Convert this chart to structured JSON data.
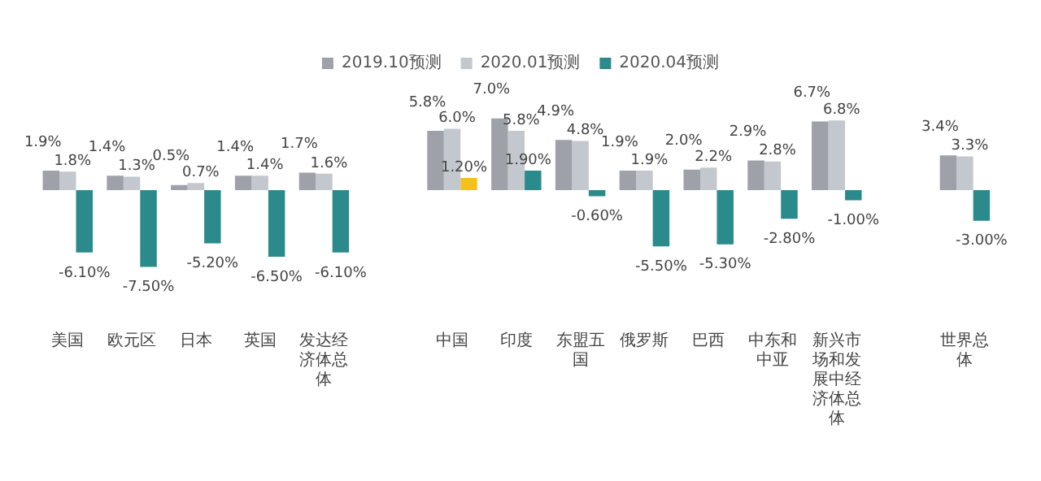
{
  "chart_data": {
    "type": "bar",
    "categories": [
      "美国",
      "欧元区",
      "日本",
      "英国",
      "发达经济体总体",
      null,
      "中国",
      "印度",
      "东盟五国",
      "俄罗斯",
      "巴西",
      "中东和中亚",
      "新兴市场和发展中经济体总体",
      null,
      "世界总体"
    ],
    "series": [
      {
        "name": "2019.10预测",
        "color": "#9ea2a8",
        "values": [
          1.9,
          1.4,
          0.5,
          1.4,
          1.7,
          null,
          5.8,
          7.0,
          4.9,
          1.9,
          2.0,
          2.9,
          6.7,
          null,
          3.4
        ],
        "value_labels": [
          "1.9%",
          "1.4%",
          "0.5%",
          "1.4%",
          "1.7%",
          null,
          "5.8%",
          "7.0%",
          "4.9%",
          "1.9%",
          "2.0%",
          "2.9%",
          "6.7%",
          null,
          "3.4%"
        ]
      },
      {
        "name": "2020.01预测",
        "color": "#c3c7ce",
        "values": [
          1.8,
          1.3,
          0.7,
          1.4,
          1.6,
          null,
          6.0,
          5.8,
          4.8,
          1.9,
          2.2,
          2.8,
          6.8,
          null,
          3.3
        ],
        "value_labels": [
          "1.8%",
          "1.3%",
          "0.7%",
          "1.4%",
          "1.6%",
          null,
          "6.0%",
          "5.8%",
          "4.8%",
          "1.9%",
          "2.2%",
          "2.8%",
          "6.8%",
          null,
          "3.3%"
        ]
      },
      {
        "name": "2020.04预测",
        "color": "#2b8a8c",
        "colors": [
          "#2b8a8c",
          "#2b8a8c",
          "#2b8a8c",
          "#2b8a8c",
          "#2b8a8c",
          "#2b8a8c",
          "#f2c21b",
          "#2b8a8c",
          "#2b8a8c",
          "#2b8a8c",
          "#2b8a8c",
          "#2b8a8c",
          "#2b8a8c",
          "#2b8a8c",
          "#2b8a8c"
        ],
        "values": [
          -6.1,
          -7.5,
          -5.2,
          -6.5,
          -6.1,
          null,
          1.2,
          1.9,
          -0.6,
          -5.5,
          -5.3,
          -2.8,
          -1.0,
          null,
          -3.0
        ],
        "value_labels": [
          "-6.10%",
          "-7.50%",
          "-5.20%",
          "-6.50%",
          "-6.10%",
          null,
          "1.20%",
          "1.90%",
          "-0.60%",
          "-5.50%",
          "-5.30%",
          "-2.80%",
          "-1.00%",
          null,
          "-3.00%"
        ]
      }
    ],
    "legend": "top",
    "grid": false
  }
}
